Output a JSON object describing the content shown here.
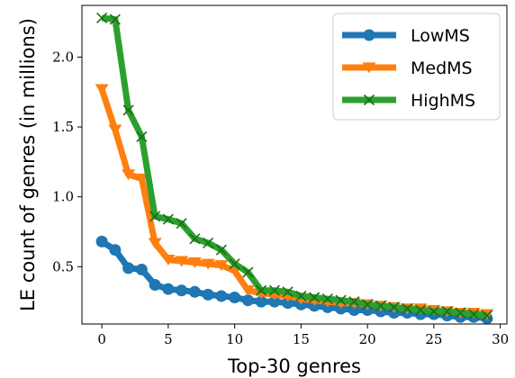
{
  "chart_data": {
    "type": "line",
    "title": "",
    "xlabel": "Top-30 genres",
    "ylabel": "LE count of genres (in millions)",
    "xlim": [
      -1.5,
      30.5
    ],
    "ylim": [
      0.09,
      2.37
    ],
    "xticks": [
      0,
      5,
      10,
      15,
      20,
      25,
      30
    ],
    "yticks": [
      0.5,
      1.0,
      1.5,
      2.0
    ],
    "xtick_labels": [
      "0",
      "5",
      "10",
      "15",
      "20",
      "25",
      "30"
    ],
    "ytick_labels": [
      "0.5",
      "1.0",
      "1.5",
      "2.0"
    ],
    "grid": false,
    "legend_position": "top-right",
    "x": [
      0,
      1,
      2,
      3,
      4,
      5,
      6,
      7,
      8,
      9,
      10,
      11,
      12,
      13,
      14,
      15,
      16,
      17,
      18,
      19,
      20,
      21,
      22,
      23,
      24,
      25,
      26,
      27,
      28,
      29
    ],
    "series": [
      {
        "name": "LowMS",
        "color": "#1f77b4",
        "marker": "circle",
        "values": [
          0.68,
          0.62,
          0.49,
          0.48,
          0.37,
          0.34,
          0.33,
          0.32,
          0.3,
          0.29,
          0.28,
          0.26,
          0.25,
          0.25,
          0.24,
          0.23,
          0.22,
          0.21,
          0.2,
          0.19,
          0.19,
          0.18,
          0.17,
          0.17,
          0.16,
          0.16,
          0.15,
          0.14,
          0.14,
          0.13
        ]
      },
      {
        "name": "MedMS",
        "color": "#ff7f0e",
        "marker": "triangle-down",
        "values": [
          1.77,
          1.48,
          1.16,
          1.13,
          0.67,
          0.55,
          0.54,
          0.53,
          0.52,
          0.51,
          0.47,
          0.33,
          0.31,
          0.3,
          0.29,
          0.27,
          0.26,
          0.25,
          0.24,
          0.24,
          0.23,
          0.22,
          0.21,
          0.2,
          0.2,
          0.19,
          0.18,
          0.17,
          0.17,
          0.16
        ]
      },
      {
        "name": "HighMS",
        "color": "#2ca02c",
        "marker": "x",
        "values": [
          2.28,
          2.27,
          1.62,
          1.43,
          0.86,
          0.84,
          0.81,
          0.7,
          0.67,
          0.62,
          0.52,
          0.46,
          0.33,
          0.33,
          0.32,
          0.29,
          0.28,
          0.27,
          0.26,
          0.25,
          0.23,
          0.22,
          0.21,
          0.2,
          0.19,
          0.18,
          0.18,
          0.17,
          0.16,
          0.15
        ]
      }
    ]
  }
}
